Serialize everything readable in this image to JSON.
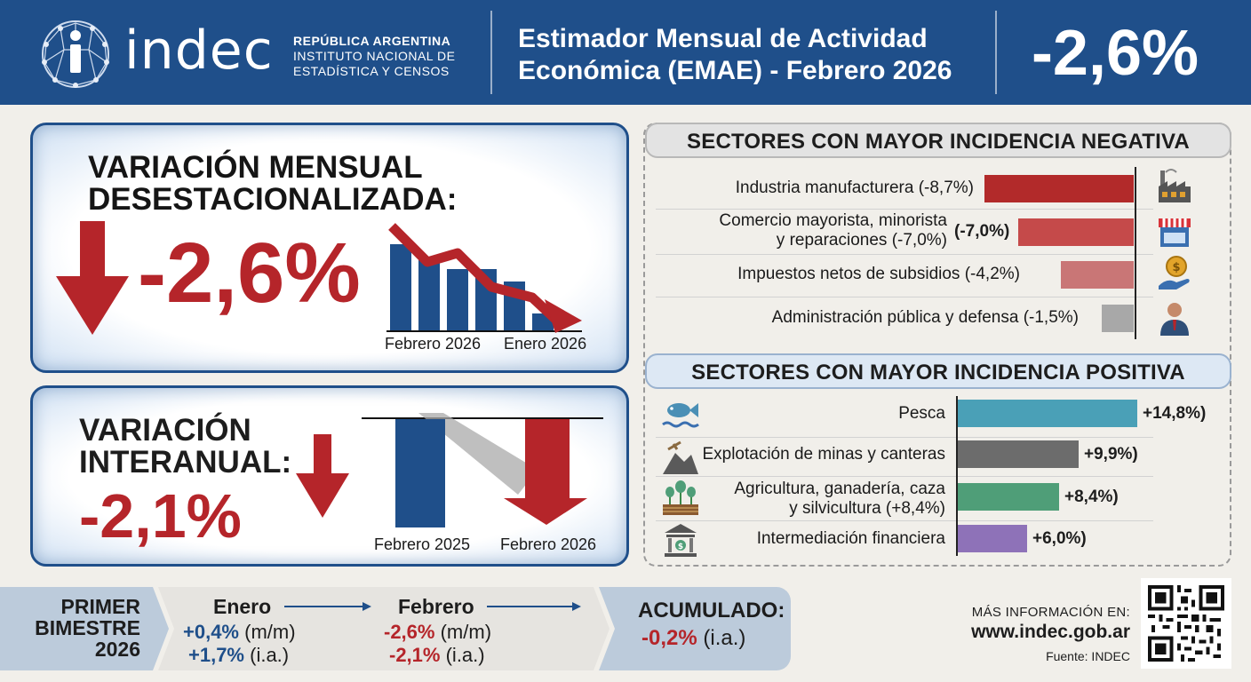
{
  "header": {
    "logo_text": "indec",
    "org_line1": "REPÚBLICA ARGENTINA",
    "org_line2": "INSTITUTO NACIONAL DE",
    "org_line3": "ESTADÍSTICA Y CENSOS",
    "title_line1": "Estimador Mensual de Actividad",
    "title_line2": "Económica (EMAE) - Febrero 2026",
    "headline_value": "-2,6%"
  },
  "monthly": {
    "title_line1": "VARIACIÓN MENSUAL",
    "title_line2": "DESESTACIONALIZADA:",
    "value": "-2,6%",
    "label_left": "Febrero 2026",
    "label_right": "Enero 2026"
  },
  "yearly": {
    "title_line1": "VARIACIÓN",
    "title_line2": "INTERANUAL:",
    "value": "-2,1%",
    "label_left": "Febrero 2025",
    "label_right": "Febrero 2026"
  },
  "negative": {
    "heading": "SECTORES CON MAYOR INCIDENCIA NEGATIVA",
    "rows": [
      {
        "label": "Industria manufacturera (-8,7%)",
        "value": 8.7
      },
      {
        "label_line1": "Comercio mayorista, minorista",
        "label_line2": "y reparaciones (-7,0%)",
        "value_label": "(-7,0%)",
        "value": 7.0
      },
      {
        "label": "Impuestos netos de subsidios (-4,2%)",
        "value": 4.2
      },
      {
        "label": "Administración pública y defensa (-1,5%)",
        "value": 1.5
      }
    ]
  },
  "positive": {
    "heading": "SECTORES CON MAYOR INCIDENCIA POSITIVA",
    "rows": [
      {
        "label": "Pesca",
        "value_label": "+14,8%)",
        "value": 14.8
      },
      {
        "label": "Explotación de minas y canteras",
        "value_label": "+9,9%)",
        "value": 9.9
      },
      {
        "label_line1": "Agricultura, ganadería, caza",
        "label_line2": "y silvicultura (+8,4%)",
        "value_label": "+8,4%)",
        "value": 8.4
      },
      {
        "label": "Intermediación financiera",
        "value_label": "+6,0%)",
        "value": 6.0
      }
    ]
  },
  "colors": {
    "brand_blue": "#1f4f8a",
    "red": "#b5252a",
    "neg_bars": [
      "#b22a2a",
      "#c54a4a",
      "#c97676",
      "#a8a8a8"
    ],
    "pos_bars": [
      "#4aa0b7",
      "#6c6c6c",
      "#4f9e78",
      "#8e72b8"
    ]
  },
  "bimester": {
    "label_line1": "PRIMER",
    "label_line2": "BIMESTRE",
    "label_line3": "2026",
    "jan": {
      "head": "Enero",
      "mm": "+0,4%",
      "ia": "+1,7%"
    },
    "feb": {
      "head": "Febrero",
      "mm": "-2,6%",
      "ia": "-2,1%"
    },
    "mm_unit": "(m/m)",
    "ia_unit": "(i.a.)",
    "accum_label": "ACUMULADO:",
    "accum_value": "-0,2%",
    "accum_unit": "(i.a.)"
  },
  "footer": {
    "more_info": "MÁS INFORMACIÓN EN:",
    "url": "www.indec.gob.ar",
    "source": "Fuente: INDEC"
  },
  "icons": [
    "factory-icon",
    "store-icon",
    "coin-hand-icon",
    "official-icon",
    "fish-icon",
    "mine-icon",
    "plant-icon",
    "bank-icon",
    "qr-code-icon"
  ]
}
